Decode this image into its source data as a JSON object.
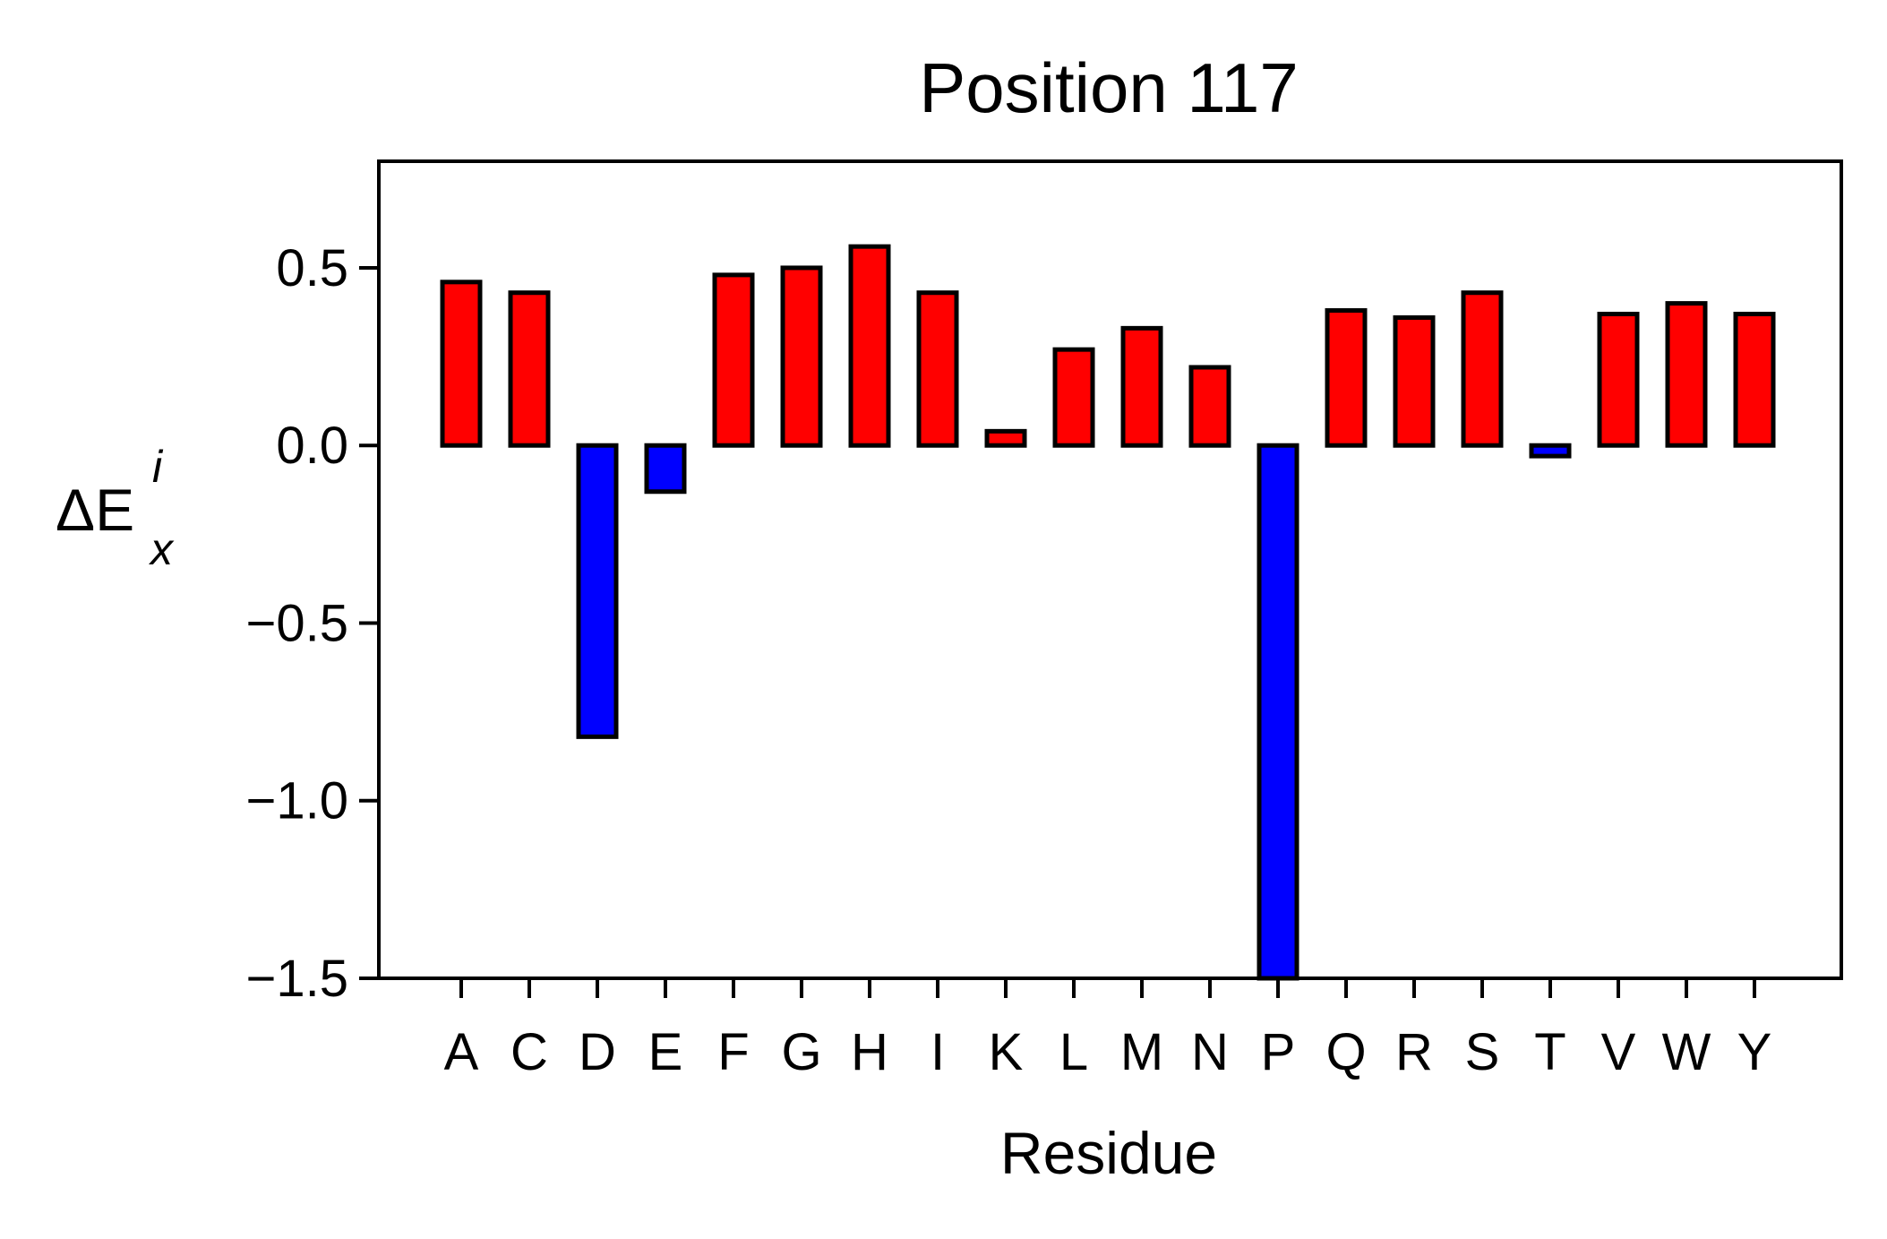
{
  "chart_data": {
    "type": "bar",
    "title": "Position 117",
    "xlabel": "Residue",
    "ylabel": {
      "base": "ΔE",
      "subscript": "x",
      "superscript": "i"
    },
    "ylim": [
      -1.5,
      0.8
    ],
    "yticks": [
      0.5,
      0.0,
      -0.5,
      -1.0,
      -1.5
    ],
    "ytick_labels": [
      "0.5",
      "0.0",
      "−0.5",
      "−1.0",
      "−1.5"
    ],
    "categories": [
      "A",
      "C",
      "D",
      "E",
      "F",
      "G",
      "H",
      "I",
      "K",
      "L",
      "M",
      "N",
      "P",
      "Q",
      "R",
      "S",
      "T",
      "V",
      "W",
      "Y"
    ],
    "values": [
      0.46,
      0.43,
      -0.82,
      -0.13,
      0.48,
      0.5,
      0.56,
      0.43,
      0.04,
      0.27,
      0.33,
      0.22,
      -1.5,
      0.38,
      0.36,
      0.43,
      -0.03,
      0.37,
      0.4,
      0.37
    ],
    "grid": false,
    "legend": "none",
    "colors": {
      "positive": "#ff0000",
      "negative": "#0000ff",
      "edge": "#000000",
      "axes": "#000000"
    }
  }
}
